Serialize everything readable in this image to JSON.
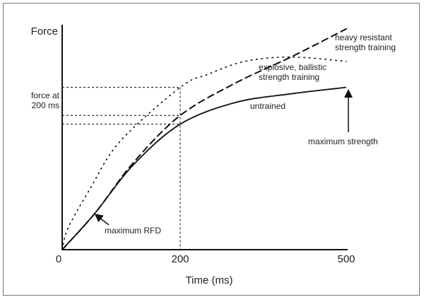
{
  "chart_data": {
    "type": "line",
    "xlabel": "Time (ms)",
    "ylabel": "Force",
    "x_ticks": [
      "0",
      "200",
      "500"
    ],
    "xlim": [
      0,
      500
    ],
    "ylim": [
      0,
      105
    ],
    "grid": false,
    "y_reference_label": "force at 200 ms",
    "series": [
      {
        "name": "untrained",
        "style": "solid",
        "points": [
          [
            0,
            0
          ],
          [
            56,
            17
          ],
          [
            120,
            39
          ],
          [
            200,
            58
          ],
          [
            300,
            68
          ],
          [
            400,
            72
          ],
          [
            500,
            75
          ]
        ]
      },
      {
        "name": "heavy resistant strength training",
        "style": "dashed",
        "points": [
          [
            0,
            0
          ],
          [
            56,
            17
          ],
          [
            120,
            40
          ],
          [
            200,
            62
          ],
          [
            300,
            77
          ],
          [
            400,
            89
          ],
          [
            500,
            102
          ]
        ]
      },
      {
        "name": "explosive, ballistic strength training",
        "style": "dotted",
        "points": [
          [
            0,
            0
          ],
          [
            10,
            10
          ],
          [
            47,
            28
          ],
          [
            98,
            50
          ],
          [
            200,
            75
          ],
          [
            250,
            81
          ],
          [
            317,
            87
          ],
          [
            400,
            89
          ],
          [
            500,
            87
          ]
        ]
      }
    ],
    "annotations": {
      "max_rfd": "maximum RFD",
      "max_strength": "maximum strength",
      "force_at_200_line1": "force at",
      "force_at_200_line2": "200 ms",
      "heavy_line1": "heavy resistant",
      "heavy_line2": "strength training",
      "explosive_line1": "explosive, ballistic",
      "explosive_line2": "strength training",
      "untrained": "untrained"
    }
  }
}
